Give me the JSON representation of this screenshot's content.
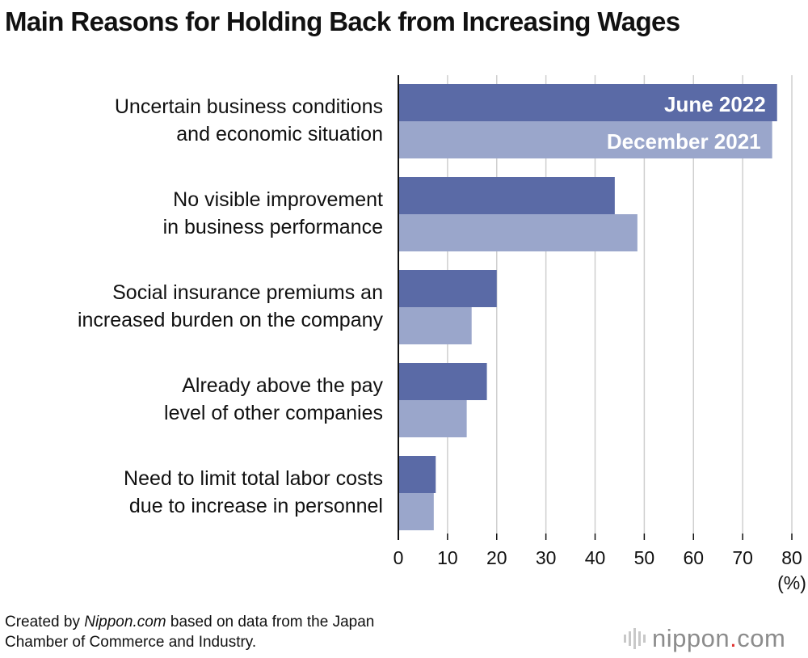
{
  "title": "Main Reasons for Holding Back from Increasing Wages",
  "source": {
    "prefix": "Created by ",
    "site": "Nippon.com",
    "line1_rest": " based on data from the Japan",
    "line2": "Chamber of Commerce and Industry."
  },
  "logo": {
    "name": "nippon",
    "dot": ".",
    "suffix": "com"
  },
  "colors": {
    "june_2022": "#5a6aa6",
    "december_2021": "#9aa6cb",
    "grid": "#cfcfcf",
    "axis": "#111111"
  },
  "chart_data": {
    "type": "bar",
    "orientation": "horizontal",
    "title": "Main Reasons for Holding Back from Increasing Wages",
    "xunit": "(%)",
    "xlim": [
      0,
      80
    ],
    "xticks": [
      0,
      10,
      20,
      30,
      40,
      50,
      60,
      70,
      80
    ],
    "grid": true,
    "categories": [
      [
        "Uncertain business conditions",
        "and economic situation"
      ],
      [
        "No visible improvement",
        "in business performance"
      ],
      [
        "Social insurance premiums an",
        "increased burden on the company"
      ],
      [
        "Already above the pay",
        "level of other companies"
      ],
      [
        "Need to limit total labor costs",
        "due to increase in personnel"
      ]
    ],
    "series": [
      {
        "name": "June 2022",
        "values": [
          77.0,
          44.0,
          20.0,
          18.0,
          7.6
        ]
      },
      {
        "name": "December 2021",
        "values": [
          76.0,
          48.6,
          14.9,
          13.9,
          7.2
        ]
      }
    ]
  }
}
